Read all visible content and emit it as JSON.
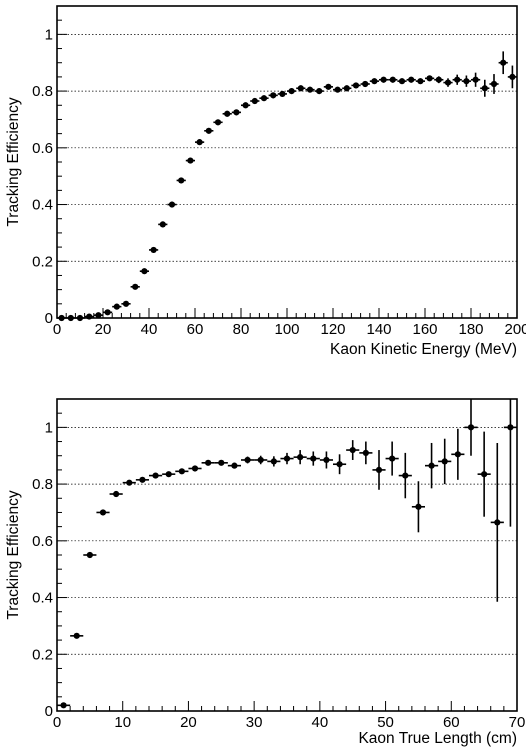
{
  "chart_data": [
    {
      "type": "scatter",
      "xlabel": "Kaon Kinetic Energy (MeV)",
      "ylabel": "Tracking Efficiency",
      "xlim": [
        0,
        200
      ],
      "ylim": [
        0,
        1.1
      ],
      "x_ticks": [
        "0",
        "20",
        "40",
        "60",
        "80",
        "100",
        "120",
        "140",
        "160",
        "180",
        "200"
      ],
      "y_ticks": [
        "0",
        "0.2",
        "0.4",
        "0.6",
        "0.8",
        "1"
      ],
      "grid": "horizontal dotted",
      "bin_width": 4,
      "series": [
        {
          "x": [
            2,
            6,
            10,
            14,
            18,
            22,
            26,
            30,
            34,
            38,
            42,
            46,
            50,
            54,
            58,
            62,
            66,
            70,
            74,
            78,
            82,
            86,
            90,
            94,
            98,
            102,
            106,
            110,
            114,
            118,
            122,
            126,
            130,
            134,
            138,
            142,
            146,
            150,
            154,
            158,
            162,
            166,
            170,
            174,
            178,
            182,
            186,
            190,
            194,
            198
          ],
          "y": [
            0.0,
            0.0,
            0.0,
            0.005,
            0.01,
            0.02,
            0.04,
            0.05,
            0.11,
            0.165,
            0.24,
            0.33,
            0.4,
            0.485,
            0.555,
            0.62,
            0.66,
            0.69,
            0.72,
            0.725,
            0.75,
            0.765,
            0.775,
            0.785,
            0.79,
            0.8,
            0.81,
            0.805,
            0.8,
            0.815,
            0.805,
            0.81,
            0.82,
            0.825,
            0.835,
            0.84,
            0.84,
            0.835,
            0.84,
            0.835,
            0.845,
            0.84,
            0.83,
            0.84,
            0.835,
            0.84,
            0.81,
            0.825,
            0.9,
            0.85
          ],
          "yerr": [
            0.003,
            0.003,
            0.003,
            0.004,
            0.005,
            0.006,
            0.007,
            0.008,
            0.009,
            0.01,
            0.01,
            0.01,
            0.01,
            0.01,
            0.01,
            0.01,
            0.01,
            0.01,
            0.01,
            0.01,
            0.01,
            0.01,
            0.01,
            0.01,
            0.01,
            0.01,
            0.01,
            0.01,
            0.01,
            0.01,
            0.01,
            0.01,
            0.01,
            0.01,
            0.01,
            0.01,
            0.01,
            0.01,
            0.01,
            0.01,
            0.01,
            0.012,
            0.015,
            0.018,
            0.02,
            0.025,
            0.03,
            0.035,
            0.04,
            0.04
          ]
        }
      ]
    },
    {
      "type": "scatter",
      "xlabel": "Kaon True Length (cm)",
      "ylabel": "Tracking Efficiency",
      "xlim": [
        0,
        70
      ],
      "ylim": [
        0,
        1.1
      ],
      "x_ticks": [
        "0",
        "10",
        "20",
        "30",
        "40",
        "50",
        "60",
        "70"
      ],
      "y_ticks": [
        "0",
        "0.2",
        "0.4",
        "0.6",
        "0.8",
        "1"
      ],
      "grid": "horizontal dotted",
      "bin_width": 2,
      "series": [
        {
          "x": [
            1,
            3,
            5,
            7,
            9,
            11,
            13,
            15,
            17,
            19,
            21,
            23,
            25,
            27,
            29,
            31,
            33,
            35,
            37,
            39,
            41,
            43,
            45,
            47,
            49,
            51,
            53,
            55,
            57,
            59,
            61,
            63,
            65,
            67,
            69
          ],
          "y": [
            0.02,
            0.265,
            0.55,
            0.7,
            0.765,
            0.805,
            0.815,
            0.83,
            0.835,
            0.845,
            0.855,
            0.875,
            0.875,
            0.865,
            0.885,
            0.885,
            0.88,
            0.89,
            0.895,
            0.89,
            0.885,
            0.87,
            0.92,
            0.91,
            0.85,
            0.89,
            0.83,
            0.72,
            0.865,
            0.88,
            0.905,
            1.0,
            0.835,
            0.665,
            1.0
          ],
          "yerr": [
            0.005,
            0.008,
            0.01,
            0.01,
            0.01,
            0.008,
            0.008,
            0.008,
            0.008,
            0.008,
            0.008,
            0.008,
            0.008,
            0.01,
            0.012,
            0.015,
            0.018,
            0.02,
            0.025,
            0.025,
            0.03,
            0.035,
            0.035,
            0.04,
            0.07,
            0.06,
            0.08,
            0.09,
            0.08,
            0.08,
            0.09,
            0.1,
            0.15,
            0.28,
            0.35
          ]
        }
      ]
    }
  ]
}
